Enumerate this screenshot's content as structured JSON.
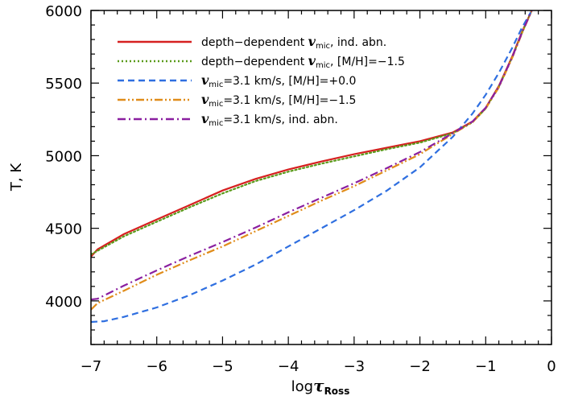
{
  "chart_data": {
    "type": "line",
    "title": "",
    "xlabel": {
      "main": "log",
      "greek": "τ",
      "sub": "Ross"
    },
    "ylabel": "T, K",
    "xlim": [
      -7,
      0
    ],
    "ylim": [
      3700,
      6000
    ],
    "x_ticks": [
      -7,
      -6,
      -5,
      -4,
      -3,
      -2,
      -1,
      0
    ],
    "x_tick_labels": [
      "−7",
      "−6",
      "−5",
      "−4",
      "−3",
      "−2",
      "−1",
      "0"
    ],
    "y_ticks": [
      4000,
      4500,
      5000,
      5500,
      6000
    ],
    "y_tick_labels": [
      "4000",
      "4500",
      "5000",
      "5500",
      "6000"
    ],
    "grid": false,
    "legend_position": "top-left",
    "series": [
      {
        "legend": [
          {
            "t": "depth−dependent "
          },
          {
            "t": "v",
            "ital": true
          },
          {
            "t": "mic",
            "sub": true
          },
          {
            "t": ", ind. abn."
          }
        ],
        "color": "#d62020",
        "dash": "solid",
        "points": [
          [
            -7.0,
            4305
          ],
          [
            -6.9,
            4355
          ],
          [
            -6.5,
            4460
          ],
          [
            -6.0,
            4560
          ],
          [
            -5.5,
            4660
          ],
          [
            -5.0,
            4760
          ],
          [
            -4.5,
            4840
          ],
          [
            -4.0,
            4905
          ],
          [
            -3.5,
            4960
          ],
          [
            -3.0,
            5010
          ],
          [
            -2.5,
            5055
          ],
          [
            -2.0,
            5100
          ],
          [
            -1.5,
            5160
          ],
          [
            -1.2,
            5235
          ],
          [
            -1.0,
            5330
          ],
          [
            -0.8,
            5480
          ],
          [
            -0.6,
            5680
          ],
          [
            -0.45,
            5850
          ],
          [
            -0.3,
            6000
          ]
        ]
      },
      {
        "legend": [
          {
            "t": "depth−dependent "
          },
          {
            "t": "v",
            "ital": true
          },
          {
            "t": "mic",
            "sub": true
          },
          {
            "t": ", [M/H]=−1.5"
          }
        ],
        "color": "#5a9a1a",
        "dash": "dotted",
        "points": [
          [
            -7.0,
            4320
          ],
          [
            -6.9,
            4345
          ],
          [
            -6.5,
            4445
          ],
          [
            -6.0,
            4545
          ],
          [
            -5.5,
            4645
          ],
          [
            -5.0,
            4740
          ],
          [
            -4.5,
            4825
          ],
          [
            -4.0,
            4890
          ],
          [
            -3.5,
            4945
          ],
          [
            -3.0,
            4995
          ],
          [
            -2.5,
            5045
          ],
          [
            -2.0,
            5090
          ],
          [
            -1.5,
            5155
          ],
          [
            -1.2,
            5230
          ],
          [
            -1.0,
            5325
          ],
          [
            -0.8,
            5475
          ],
          [
            -0.6,
            5675
          ],
          [
            -0.45,
            5845
          ],
          [
            -0.3,
            6000
          ]
        ]
      },
      {
        "legend": [
          {
            "t": "v",
            "ital": true
          },
          {
            "t": "mic",
            "sub": true
          },
          {
            "t": "=3.1 km/s, [M/H]=+0.0"
          }
        ],
        "color": "#2f6fe0",
        "dash": "dashed",
        "points": [
          [
            -7.0,
            3855
          ],
          [
            -6.8,
            3860
          ],
          [
            -6.5,
            3890
          ],
          [
            -6.0,
            3955
          ],
          [
            -5.5,
            4040
          ],
          [
            -5.0,
            4140
          ],
          [
            -4.5,
            4250
          ],
          [
            -4.0,
            4375
          ],
          [
            -3.5,
            4500
          ],
          [
            -3.0,
            4625
          ],
          [
            -2.5,
            4760
          ],
          [
            -2.0,
            4920
          ],
          [
            -1.5,
            5130
          ],
          [
            -1.2,
            5290
          ],
          [
            -1.0,
            5420
          ],
          [
            -0.8,
            5570
          ],
          [
            -0.6,
            5740
          ],
          [
            -0.45,
            5880
          ],
          [
            -0.3,
            6000
          ]
        ]
      },
      {
        "legend": [
          {
            "t": "v",
            "ital": true
          },
          {
            "t": "mic",
            "sub": true
          },
          {
            "t": "=3.1 km/s, [M/H]=−1.5"
          }
        ],
        "color": "#e08c1a",
        "dash": "dashdotdot",
        "points": [
          [
            -7.0,
            3940
          ],
          [
            -6.9,
            3985
          ],
          [
            -6.5,
            4070
          ],
          [
            -6.0,
            4180
          ],
          [
            -5.5,
            4280
          ],
          [
            -5.0,
            4375
          ],
          [
            -4.5,
            4480
          ],
          [
            -4.0,
            4585
          ],
          [
            -3.5,
            4690
          ],
          [
            -3.0,
            4790
          ],
          [
            -2.5,
            4900
          ],
          [
            -2.0,
            5010
          ],
          [
            -1.5,
            5150
          ],
          [
            -1.2,
            5230
          ],
          [
            -1.0,
            5325
          ],
          [
            -0.8,
            5470
          ],
          [
            -0.6,
            5670
          ],
          [
            -0.45,
            5840
          ],
          [
            -0.3,
            6000
          ]
        ]
      },
      {
        "legend": [
          {
            "t": "v",
            "ital": true
          },
          {
            "t": "mic",
            "sub": true
          },
          {
            "t": "=3.1 km/s, ind. abn."
          }
        ],
        "color": "#8a1fa0",
        "dash": "dashdot",
        "points": [
          [
            -7.0,
            4010
          ],
          [
            -6.9,
            4015
          ],
          [
            -6.5,
            4105
          ],
          [
            -6.0,
            4210
          ],
          [
            -5.5,
            4310
          ],
          [
            -5.0,
            4405
          ],
          [
            -4.5,
            4505
          ],
          [
            -4.0,
            4610
          ],
          [
            -3.5,
            4710
          ],
          [
            -3.0,
            4810
          ],
          [
            -2.5,
            4915
          ],
          [
            -2.0,
            5025
          ],
          [
            -1.5,
            5155
          ],
          [
            -1.2,
            5235
          ],
          [
            -1.0,
            5330
          ],
          [
            -0.8,
            5475
          ],
          [
            -0.6,
            5675
          ],
          [
            -0.45,
            5845
          ],
          [
            -0.3,
            6000
          ]
        ]
      }
    ]
  }
}
